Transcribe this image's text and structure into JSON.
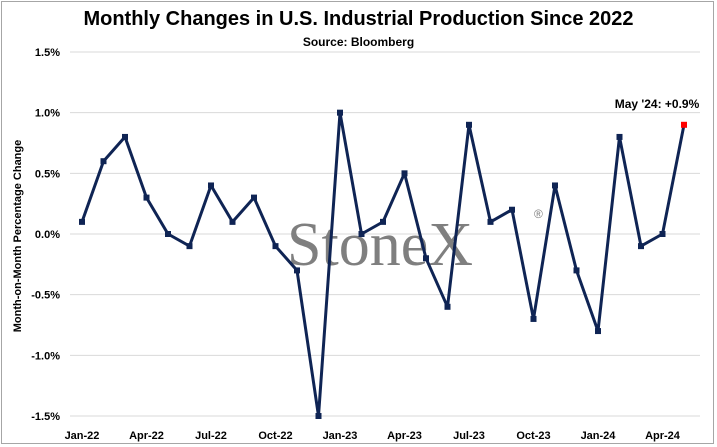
{
  "chart_data": {
    "type": "line",
    "title": "Monthly Changes in U.S. Industrial Production Since 2022",
    "subtitle": "Source: Bloomberg",
    "ylabel": "Month-on-Month Percentage Change",
    "ylim": [
      -1.5,
      1.5
    ],
    "yticks": [
      1.5,
      1.0,
      0.5,
      0.0,
      -0.5,
      -1.0,
      -1.5
    ],
    "ytick_labels": [
      "1.5%",
      "1.0%",
      "0.5%",
      "0.0%",
      "-0.5%",
      "-1.0%",
      "-1.5%"
    ],
    "x": [
      "Jan-22",
      "Feb-22",
      "Mar-22",
      "Apr-22",
      "May-22",
      "Jun-22",
      "Jul-22",
      "Aug-22",
      "Sep-22",
      "Oct-22",
      "Nov-22",
      "Dec-22",
      "Jan-23",
      "Feb-23",
      "Mar-23",
      "Apr-23",
      "May-23",
      "Jun-23",
      "Jul-23",
      "Aug-23",
      "Sep-23",
      "Oct-23",
      "Nov-23",
      "Dec-23",
      "Jan-24",
      "Feb-24",
      "Mar-24",
      "Apr-24",
      "May-24"
    ],
    "xtick_labels": [
      "Jan-22",
      "Apr-22",
      "Jul-22",
      "Oct-22",
      "Jan-23",
      "Apr-23",
      "Jul-23",
      "Oct-23",
      "Jan-24",
      "Apr-24"
    ],
    "series": [
      {
        "values": [
          0.1,
          0.6,
          0.8,
          0.3,
          0.0,
          -0.1,
          0.4,
          0.1,
          0.3,
          -0.1,
          -0.3,
          -1.5,
          1.0,
          0.0,
          0.1,
          0.5,
          -0.2,
          -0.6,
          0.9,
          0.1,
          0.2,
          -0.7,
          0.4,
          -0.3,
          -0.8,
          0.8,
          -0.1,
          0.0,
          0.9
        ],
        "color": "#0f2454",
        "highlight_color": "#ff0000"
      }
    ],
    "annotation": "May '24: +0.9%",
    "watermark": "StoneX",
    "watermark_mark": "®",
    "grid": "horizontal"
  }
}
